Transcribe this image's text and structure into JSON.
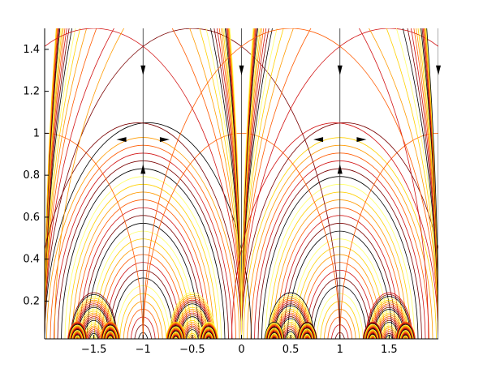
{
  "chart_data": {
    "type": "line",
    "title": "",
    "xlabel": "",
    "ylabel": "",
    "xlim": [
      -2,
      2
    ],
    "ylim": [
      0.02,
      1.5
    ],
    "grid": false,
    "legend": "none",
    "x_ticks": [
      -1.5,
      -1,
      -0.5,
      0,
      0.5,
      1,
      1.5
    ],
    "x_tick_labels": [
      "−1.5",
      "−1",
      "−0.5",
      "0",
      "0.5",
      "1",
      "1.5"
    ],
    "y_ticks": [
      0.2,
      0.4,
      0.6,
      0.8,
      1,
      1.2,
      1.4
    ],
    "y_tick_labels": [
      "0.2",
      "0.4",
      "0.6",
      "0.8",
      "1",
      "1.2",
      "1.4"
    ],
    "colormap": [
      "#000000",
      "#7a0000",
      "#d21414",
      "#ff5a00",
      "#ff9a00",
      "#ffd000",
      "#ffff66"
    ],
    "description_of_series": "Semicircular flow lines (geodesics) centred on points of the real axis; separatrix semicircles of radius 1 centred at x=±2 ... apex at (±1, 1); vertical lines at x = -1, 0, 1.",
    "separatrices": [
      {
        "center": -2,
        "radius": 1
      },
      {
        "center": 0,
        "radius": 1
      },
      {
        "center": 2,
        "radius": 1
      }
    ],
    "vertical_lines_x": [
      -2,
      -1,
      0,
      1,
      2
    ],
    "arc_families": [
      {
        "center": -1,
        "radius_min": 0.05,
        "radius_max": 0.98
      },
      {
        "center": 1,
        "radius_min": 0.05,
        "radius_max": 0.98
      },
      {
        "center": -0.5,
        "radius_min": 0.02,
        "radius_max": 0.24
      },
      {
        "center": 0.5,
        "radius_min": 0.02,
        "radius_max": 0.24
      },
      {
        "center": -1.5,
        "radius_min": 0.02,
        "radius_max": 0.24
      },
      {
        "center": 1.5,
        "radius_min": 0.02,
        "radius_max": 0.24
      },
      {
        "center": -1.667,
        "radius_min": 0.01,
        "radius_max": 0.1
      },
      {
        "center": -1.333,
        "radius_min": 0.01,
        "radius_max": 0.1
      },
      {
        "center": -0.667,
        "radius_min": 0.01,
        "radius_max": 0.1
      },
      {
        "center": -0.333,
        "radius_min": 0.01,
        "radius_max": 0.1
      },
      {
        "center": 0.333,
        "radius_min": 0.01,
        "radius_max": 0.1
      },
      {
        "center": 0.667,
        "radius_min": 0.01,
        "radius_max": 0.1
      },
      {
        "center": 1.333,
        "radius_min": 0.01,
        "radius_max": 0.1
      },
      {
        "center": 1.667,
        "radius_min": 0.01,
        "radius_max": 0.1
      }
    ],
    "arrows": [
      {
        "x": -1,
        "y": 1.3,
        "dir": "down"
      },
      {
        "x": 0,
        "y": 1.3,
        "dir": "down"
      },
      {
        "x": 1,
        "y": 1.3,
        "dir": "down"
      },
      {
        "x": 2,
        "y": 1.3,
        "dir": "down"
      },
      {
        "x": -1,
        "y": 0.83,
        "dir": "up"
      },
      {
        "x": 1,
        "y": 0.83,
        "dir": "up"
      },
      {
        "x": -1.22,
        "y": 0.97,
        "dir": "left"
      },
      {
        "x": -0.78,
        "y": 0.97,
        "dir": "right"
      },
      {
        "x": 0.78,
        "y": 0.97,
        "dir": "left"
      },
      {
        "x": 1.22,
        "y": 0.97,
        "dir": "right"
      }
    ]
  }
}
